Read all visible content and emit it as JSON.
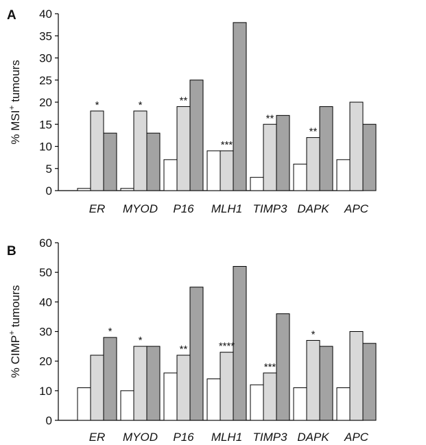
{
  "chart_data": [
    {
      "type": "bar",
      "panel_label": "A",
      "ylabel_parts": [
        "% MSI",
        "+",
        " tumours"
      ],
      "ylim": [
        0,
        40
      ],
      "yticks": [
        0,
        5,
        10,
        15,
        20,
        25,
        30,
        35,
        40
      ],
      "categories": [
        "ER",
        "MYOD",
        "P16",
        "MLH1",
        "TIMP3",
        "DAPK",
        "APC"
      ],
      "series": [
        {
          "values": [
            0.5,
            0.5,
            7,
            9,
            3,
            6,
            7
          ]
        },
        {
          "values": [
            18,
            18,
            19,
            9,
            15,
            12,
            20
          ]
        },
        {
          "values": [
            13,
            13,
            25,
            38,
            17,
            19,
            15
          ]
        }
      ],
      "annotations": [
        "*",
        "*",
        "**",
        "***",
        "**",
        "**",
        ""
      ],
      "annotation_series": [
        1,
        1,
        1,
        1,
        1,
        1,
        1
      ]
    },
    {
      "type": "bar",
      "panel_label": "B",
      "ylabel_parts": [
        "% CIMP",
        "+",
        " tumours"
      ],
      "ylim": [
        0,
        60
      ],
      "yticks": [
        0,
        10,
        20,
        30,
        40,
        50,
        60
      ],
      "categories": [
        "ER",
        "MYOD",
        "P16",
        "MLH1",
        "TIMP3",
        "DAPK",
        "APC"
      ],
      "series": [
        {
          "values": [
            11,
            10,
            16,
            14,
            12,
            11,
            11
          ]
        },
        {
          "values": [
            22,
            25,
            22,
            23,
            16,
            27,
            30
          ]
        },
        {
          "values": [
            28,
            25,
            45,
            52,
            36,
            25,
            26
          ]
        }
      ],
      "annotations": [
        "*",
        "*",
        "**",
        "****",
        "***",
        "*",
        ""
      ],
      "annotation_series": [
        2,
        1,
        1,
        1,
        1,
        1,
        1
      ]
    }
  ],
  "colors": {
    "series": [
      "#ffffff",
      "#d9d9d9",
      "#a3a3a3"
    ],
    "stroke": "#000000"
  }
}
